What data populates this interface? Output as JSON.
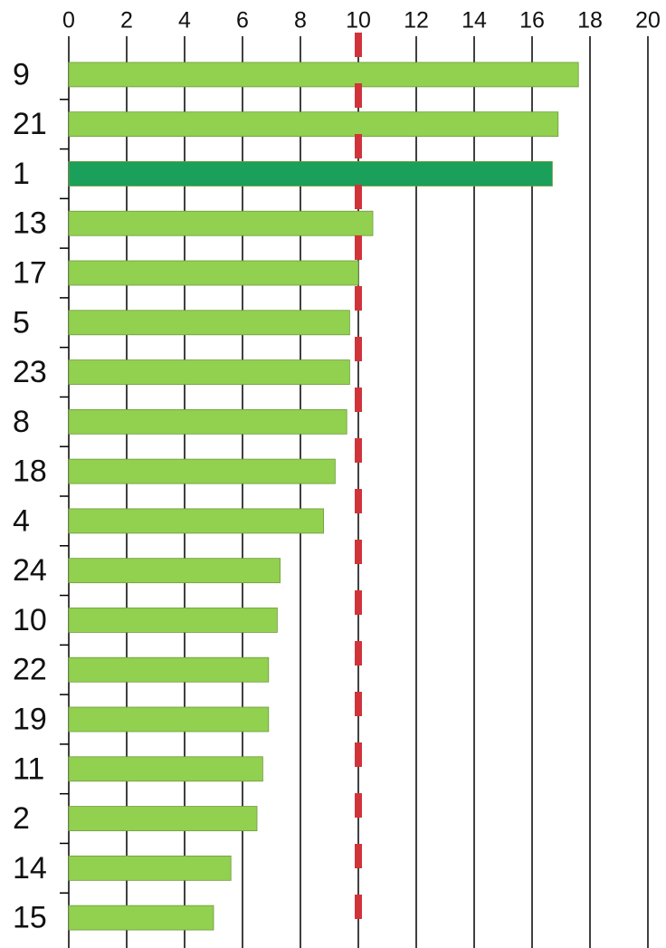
{
  "chart_data": {
    "type": "bar",
    "orientation": "horizontal",
    "categories": [
      "9",
      "21",
      "1",
      "13",
      "17",
      "5",
      "23",
      "8",
      "18",
      "4",
      "24",
      "10",
      "22",
      "19",
      "11",
      "2",
      "14",
      "15"
    ],
    "values": [
      17.6,
      16.9,
      16.7,
      10.5,
      10.0,
      9.7,
      9.7,
      9.6,
      9.2,
      8.8,
      7.3,
      7.2,
      6.9,
      6.9,
      6.7,
      6.5,
      5.6,
      5.0
    ],
    "colors": [
      "#92d050",
      "#92d050",
      "#1aa05a",
      "#92d050",
      "#92d050",
      "#92d050",
      "#92d050",
      "#92d050",
      "#92d050",
      "#92d050",
      "#92d050",
      "#92d050",
      "#92d050",
      "#92d050",
      "#92d050",
      "#92d050",
      "#92d050",
      "#92d050"
    ],
    "xlim": [
      0,
      20
    ],
    "xticks": [
      0,
      2,
      4,
      6,
      8,
      10,
      12,
      14,
      16,
      18,
      20
    ],
    "grid": true,
    "reference_line": {
      "value": 10,
      "color": "#d0343a",
      "style": "dashed"
    }
  }
}
